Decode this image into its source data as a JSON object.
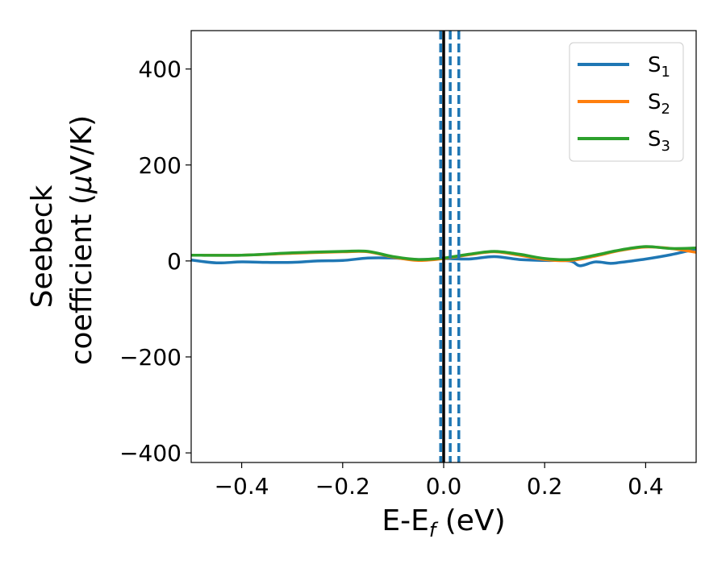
{
  "chart_data": {
    "type": "line",
    "title": "",
    "xlabel": {
      "main": "E-E",
      "sub": "f",
      "tail": " (eV)"
    },
    "ylabel": {
      "line1": "Seebeck",
      "line2": "coefficient  (",
      "mu": "μ",
      "tail": "V/K)"
    },
    "xlim": [
      -0.5,
      0.5
    ],
    "ylim": [
      -420,
      480
    ],
    "xticks": [
      -0.4,
      -0.2,
      0.0,
      0.2,
      0.4
    ],
    "xtick_labels": [
      "−0.4",
      "−0.2",
      "0.0",
      "0.2",
      "0.4"
    ],
    "yticks": [
      -400,
      -200,
      0,
      200,
      400
    ],
    "ytick_labels": [
      "−400",
      "−200",
      "0",
      "200",
      "400"
    ],
    "grid": false,
    "legend_position": "top-right",
    "series": [
      {
        "name": "S",
        "sub": "1",
        "color": "#1f77b4",
        "x": [
          -0.5,
          -0.45,
          -0.4,
          -0.35,
          -0.3,
          -0.25,
          -0.2,
          -0.15,
          -0.1,
          -0.05,
          0.0,
          0.05,
          0.1,
          0.15,
          0.2,
          0.25,
          0.27,
          0.3,
          0.33,
          0.35,
          0.4,
          0.45,
          0.5
        ],
        "y": [
          2,
          -4,
          -2,
          -3,
          -3,
          0,
          1,
          6,
          6,
          3,
          5,
          4,
          9,
          3,
          1,
          0,
          -10,
          -2,
          -5,
          -3,
          4,
          13,
          25
        ]
      },
      {
        "name": "S",
        "sub": "2",
        "color": "#ff7f0e",
        "x": [
          -0.5,
          -0.4,
          -0.3,
          -0.2,
          -0.15,
          -0.1,
          -0.05,
          0.0,
          0.05,
          0.1,
          0.15,
          0.2,
          0.25,
          0.3,
          0.35,
          0.4,
          0.45,
          0.5
        ],
        "y": [
          12,
          12,
          16,
          19,
          19,
          8,
          1,
          5,
          13,
          19,
          12,
          3,
          1,
          10,
          22,
          29,
          26,
          18
        ]
      },
      {
        "name": "S",
        "sub": "3",
        "color": "#2ca02c",
        "x": [
          -0.5,
          -0.4,
          -0.3,
          -0.2,
          -0.15,
          -0.1,
          -0.05,
          0.0,
          0.05,
          0.1,
          0.15,
          0.2,
          0.25,
          0.3,
          0.35,
          0.4,
          0.45,
          0.5
        ],
        "y": [
          12,
          12,
          17,
          20,
          20,
          9,
          3,
          6,
          14,
          20,
          14,
          5,
          3,
          12,
          23,
          30,
          26,
          27
        ]
      }
    ],
    "vlines": [
      {
        "x": -0.006,
        "style": "dashed",
        "color": "#1f77b4"
      },
      {
        "x": 0.013,
        "style": "dashed",
        "color": "#1f77b4"
      },
      {
        "x": 0.03,
        "style": "dashed",
        "color": "#1f77b4"
      },
      {
        "x": 0.0,
        "style": "solid",
        "color": "#000000"
      }
    ]
  }
}
